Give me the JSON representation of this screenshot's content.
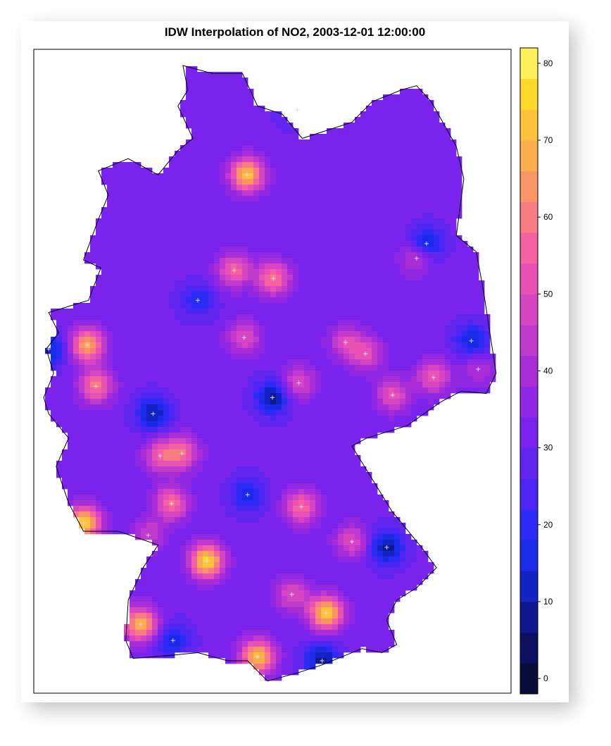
{
  "chart_data": {
    "type": "heatmap",
    "title": "IDW Interpolation of NO2, 2003-12-01 12:00:00",
    "xlabel": "",
    "ylabel": "",
    "color_range": [
      -2,
      82
    ],
    "colorbar": {
      "ticks": [
        "0",
        "10",
        "20",
        "30",
        "40",
        "50",
        "60",
        "70",
        "80"
      ],
      "tick_values": [
        0,
        10,
        20,
        30,
        40,
        50,
        60,
        70,
        80
      ],
      "levels": [
        -2,
        2,
        6,
        10,
        14,
        18,
        22,
        26,
        30,
        34,
        38,
        42,
        46,
        50,
        54,
        58,
        62,
        66,
        70,
        74,
        78,
        82
      ],
      "colors": [
        "#0b0b3a",
        "#0d1060",
        "#101890",
        "#1423c4",
        "#1a2be8",
        "#2b2bf5",
        "#4b26f2",
        "#6226ee",
        "#7a23ec",
        "#9128e4",
        "#a92ed8",
        "#c03acd",
        "#d646c3",
        "#e852b5",
        "#f462a1",
        "#f87c84",
        "#fa9566",
        "#fcae4e",
        "#fdc33c",
        "#fed92c",
        "#fff15a"
      ]
    },
    "legend_position": "right",
    "grid": false,
    "hotspots": [
      {
        "lon": 9.99,
        "lat": 53.55,
        "value": 72
      },
      {
        "lon": 6.78,
        "lat": 51.45,
        "value": 68
      },
      {
        "lon": 6.95,
        "lat": 50.94,
        "value": 60
      },
      {
        "lon": 6.7,
        "lat": 49.25,
        "value": 75
      },
      {
        "lon": 9.18,
        "lat": 48.78,
        "value": 76
      },
      {
        "lon": 11.58,
        "lat": 48.14,
        "value": 74
      },
      {
        "lon": 7.85,
        "lat": 48.0,
        "value": 70
      },
      {
        "lon": 10.2,
        "lat": 47.6,
        "value": 72
      },
      {
        "lon": 9.73,
        "lat": 52.37,
        "value": 56
      },
      {
        "lon": 10.52,
        "lat": 52.27,
        "value": 60
      },
      {
        "lon": 8.68,
        "lat": 50.11,
        "value": 56
      },
      {
        "lon": 8.47,
        "lat": 49.49,
        "value": 58
      },
      {
        "lon": 8.24,
        "lat": 50.08,
        "value": 52
      },
      {
        "lon": 11.08,
        "lat": 49.45,
        "value": 58
      },
      {
        "lon": 9.93,
        "lat": 51.54,
        "value": 50
      },
      {
        "lon": 12.37,
        "lat": 51.34,
        "value": 50
      },
      {
        "lon": 13.74,
        "lat": 51.05,
        "value": 54
      },
      {
        "lon": 12.92,
        "lat": 50.83,
        "value": 52
      },
      {
        "lon": 13.4,
        "lat": 52.52,
        "value": 46
      },
      {
        "lon": 14.64,
        "lat": 51.15,
        "value": 42
      },
      {
        "lon": 12.1,
        "lat": 49.02,
        "value": 50
      },
      {
        "lon": 10.89,
        "lat": 48.37,
        "value": 50
      },
      {
        "lon": 11.03,
        "lat": 50.98,
        "value": 50
      },
      {
        "lon": 11.97,
        "lat": 51.48,
        "value": 48
      },
      {
        "lon": 8.0,
        "lat": 49.1,
        "value": 46
      },
      {
        "lon": 11.0,
        "lat": 54.35,
        "value": 20
      },
      {
        "lon": 13.6,
        "lat": 52.7,
        "value": 12
      },
      {
        "lon": 12.8,
        "lat": 48.95,
        "value": 8
      },
      {
        "lon": 8.1,
        "lat": 50.6,
        "value": 10
      },
      {
        "lon": 10.5,
        "lat": 50.8,
        "value": 8
      },
      {
        "lon": 6.0,
        "lat": 51.4,
        "value": 12
      },
      {
        "lon": 14.5,
        "lat": 51.5,
        "value": 14
      },
      {
        "lon": 11.5,
        "lat": 47.55,
        "value": 8
      },
      {
        "lon": 9.0,
        "lat": 52.0,
        "value": 18
      },
      {
        "lon": 10.0,
        "lat": 49.6,
        "value": 16
      },
      {
        "lon": 8.5,
        "lat": 47.8,
        "value": 16
      }
    ],
    "background_value": 31
  }
}
